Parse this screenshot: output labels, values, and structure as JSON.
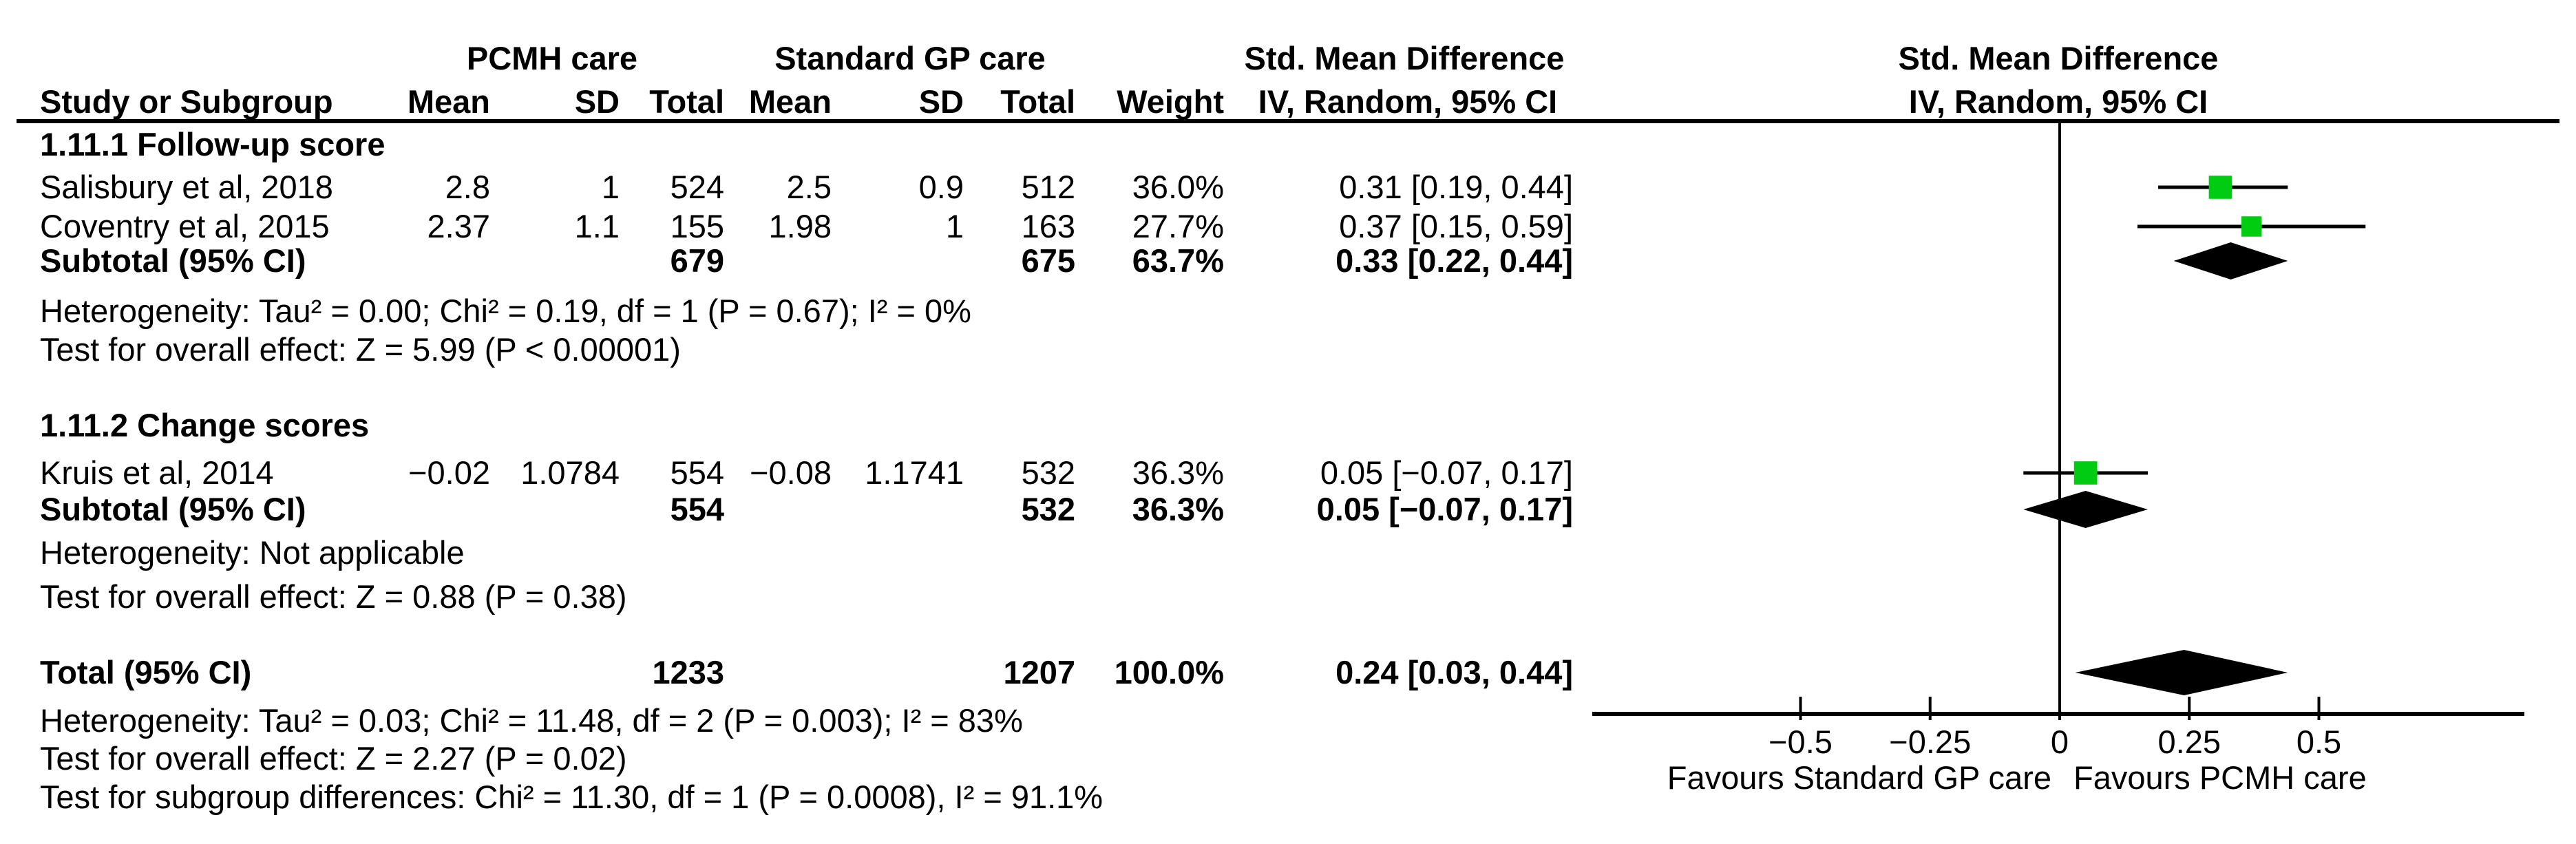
{
  "figure_title": "Forest plot: Std. Mean Difference, PCMH care vs Standard GP care",
  "table": {
    "group_headers": [
      "PCMH care",
      "Standard GP care"
    ],
    "smd_text_header": [
      "Std. Mean Difference",
      "IV, Random, 95% CI"
    ],
    "smd_graph_header": [
      "Std. Mean Difference",
      "IV, Random, 95% CI"
    ],
    "rows": [
      {
        "id": "colhead",
        "kind": "header",
        "study": "Study or Subgroup",
        "mean1": "Mean",
        "sd1": "SD",
        "total1": "Total",
        "mean2": "Mean",
        "sd2": "SD",
        "total2": "Total",
        "weight": "Weight"
      },
      {
        "id": "sec1-title",
        "kind": "title",
        "study": "1.11.1 Follow-up score"
      },
      {
        "id": "salisbury",
        "kind": "study",
        "study": "Salisbury et al, 2018",
        "mean1": "2.8",
        "sd1": "1",
        "total1": "524",
        "mean2": "2.5",
        "sd2": "0.9",
        "total2": "512",
        "weight": "36.0%",
        "ci": "0.31 [0.19, 0.44]"
      },
      {
        "id": "coventry",
        "kind": "study",
        "study": "Coventry et al, 2015",
        "mean1": "2.37",
        "sd1": "1.1",
        "total1": "155",
        "mean2": "1.98",
        "sd2": "1",
        "total2": "163",
        "weight": "27.7%",
        "ci": "0.37 [0.15, 0.59]"
      },
      {
        "id": "sub1",
        "kind": "subtotal",
        "study": "Subtotal (95% CI)",
        "total1": "679",
        "total2": "675",
        "weight": "63.7%",
        "ci": "0.33 [0.22, 0.44]"
      },
      {
        "id": "het1",
        "kind": "note",
        "study": "Heterogeneity: Tau² = 0.00; Chi² = 0.19, df = 1 (P = 0.67); I² = 0%"
      },
      {
        "id": "eff1",
        "kind": "note",
        "study": "Test for overall effect: Z = 5.99 (P < 0.00001)"
      },
      {
        "id": "sec2-title",
        "kind": "title",
        "study": "1.11.2 Change scores"
      },
      {
        "id": "kruis",
        "kind": "study",
        "study": "Kruis et al, 2014",
        "mean1": "−0.02",
        "sd1": "1.0784",
        "total1": "554",
        "mean2": "−0.08",
        "sd2": "1.1741",
        "total2": "532",
        "weight": "36.3%",
        "ci": "0.05 [−0.07, 0.17]"
      },
      {
        "id": "sub2",
        "kind": "subtotal",
        "study": "Subtotal (95% CI)",
        "total1": "554",
        "total2": "532",
        "weight": "36.3%",
        "ci": "0.05 [−0.07, 0.17]"
      },
      {
        "id": "het2",
        "kind": "note",
        "study": "Heterogeneity: Not applicable"
      },
      {
        "id": "eff2",
        "kind": "note",
        "study": "Test for overall effect: Z = 0.88 (P = 0.38)"
      },
      {
        "id": "total",
        "kind": "total",
        "study": "Total (95% CI)",
        "total1": "1233",
        "total2": "1207",
        "weight": "100.0%",
        "ci": "0.24 [0.03, 0.44]"
      },
      {
        "id": "het-total",
        "kind": "note",
        "study": "Heterogeneity: Tau² = 0.03; Chi² = 11.48, df = 2 (P = 0.003); I² = 83%"
      },
      {
        "id": "eff-total",
        "kind": "note",
        "study": "Test for overall effect: Z = 2.27 (P = 0.02)"
      },
      {
        "id": "subgroup-diff",
        "kind": "note",
        "study": "Test for subgroup differences: Chi² = 11.30, df = 1 (P = 0.0008), I² = 91.1%"
      }
    ]
  },
  "chart_data": {
    "type": "forest",
    "effect_measure": "Std. Mean Difference",
    "method": "IV, Random, 95% CI",
    "x_axis": {
      "ticks": [
        -0.5,
        -0.25,
        0,
        0.25,
        0.5
      ],
      "tick_labels": [
        "−0.5",
        "−0.25",
        "0",
        "0.25",
        "0.5"
      ],
      "zero_line": 0,
      "favours_left": "Favours Standard GP care",
      "favours_right": "Favours PCMH care"
    },
    "points": [
      {
        "id": "salisbury",
        "label": "Salisbury et al, 2018",
        "subgroup": "1.11.1 Follow-up score",
        "est": 0.31,
        "lo": 0.19,
        "hi": 0.44,
        "weight_pct": 36.0,
        "marker": "square"
      },
      {
        "id": "coventry",
        "label": "Coventry et al, 2015",
        "subgroup": "1.11.1 Follow-up score",
        "est": 0.37,
        "lo": 0.15,
        "hi": 0.59,
        "weight_pct": 27.7,
        "marker": "square"
      },
      {
        "id": "sub1",
        "label": "Subtotal (95% CI) 1.11.1 Follow-up score",
        "est": 0.33,
        "lo": 0.22,
        "hi": 0.44,
        "weight_pct": 63.7,
        "marker": "diamond"
      },
      {
        "id": "kruis",
        "label": "Kruis et al, 2014",
        "subgroup": "1.11.2 Change scores",
        "est": 0.05,
        "lo": -0.07,
        "hi": 0.17,
        "weight_pct": 36.3,
        "marker": "square"
      },
      {
        "id": "sub2",
        "label": "Subtotal (95% CI) 1.11.2 Change scores",
        "est": 0.05,
        "lo": -0.07,
        "hi": 0.17,
        "weight_pct": 36.3,
        "marker": "diamond"
      },
      {
        "id": "total",
        "label": "Total (95% CI)",
        "est": 0.24,
        "lo": 0.03,
        "hi": 0.44,
        "weight_pct": 100.0,
        "marker": "diamond"
      }
    ]
  },
  "colors": {
    "marker_green": "#00cc11",
    "ink": "#000000",
    "background": "#ffffff"
  }
}
